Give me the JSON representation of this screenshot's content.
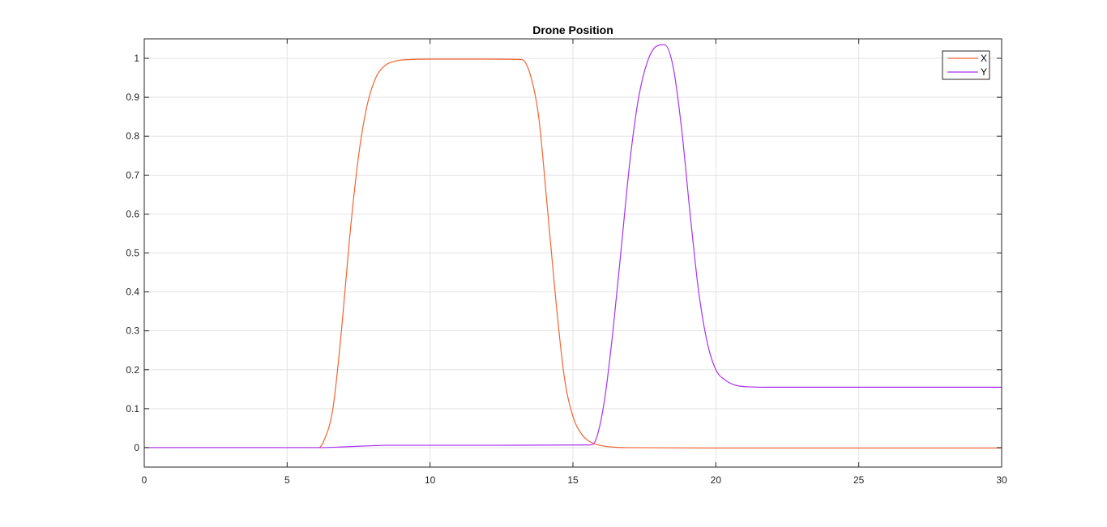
{
  "chart_data": {
    "type": "line",
    "title": "Drone Position",
    "xlabel": "",
    "ylabel": "",
    "xlim": [
      0,
      30
    ],
    "ylim": [
      -0.05,
      1.05
    ],
    "xticks": [
      0,
      5,
      10,
      15,
      20,
      25,
      30
    ],
    "yticks": [
      0,
      0.1,
      0.2,
      0.3,
      0.4,
      0.5,
      0.6,
      0.7,
      0.8,
      0.9,
      1
    ],
    "xtick_labels": [
      "0",
      "5",
      "10",
      "15",
      "20",
      "25",
      "30"
    ],
    "ytick_labels": [
      "0",
      "0.1",
      "0.2",
      "0.3",
      "0.4",
      "0.5",
      "0.6",
      "0.7",
      "0.8",
      "0.9",
      "1"
    ],
    "grid": true,
    "legend_position": "top-right",
    "series": [
      {
        "name": "X",
        "color": "#f26430",
        "x": [
          0,
          6.1,
          6.3,
          6.6,
          6.9,
          7.2,
          7.5,
          7.8,
          8.1,
          8.4,
          8.8,
          9.3,
          10,
          12,
          13.2,
          13.5,
          13.8,
          14.1,
          14.4,
          14.7,
          15.0,
          15.3,
          15.6,
          16.0,
          16.5,
          17,
          20,
          25,
          30
        ],
        "y": [
          0,
          0,
          0.02,
          0.1,
          0.3,
          0.55,
          0.75,
          0.88,
          0.95,
          0.98,
          0.993,
          0.997,
          0.998,
          0.998,
          0.997,
          0.96,
          0.85,
          0.62,
          0.38,
          0.18,
          0.08,
          0.035,
          0.015,
          0.005,
          0.001,
          0,
          -0.001,
          -0.001,
          -0.001
        ]
      },
      {
        "name": "Y",
        "color": "#a832f0",
        "x": [
          0,
          6.1,
          7.0,
          8.0,
          8.5,
          12,
          15.6,
          15.8,
          16.1,
          16.4,
          16.7,
          17.0,
          17.3,
          17.6,
          17.9,
          18.2,
          18.5,
          18.8,
          19.1,
          19.4,
          19.7,
          20.0,
          20.3,
          20.7,
          21.2,
          22,
          25,
          30
        ],
        "y": [
          0,
          0,
          0.002,
          0.005,
          0.006,
          0.006,
          0.007,
          0.02,
          0.12,
          0.3,
          0.52,
          0.74,
          0.9,
          0.99,
          1.03,
          1.035,
          0.98,
          0.82,
          0.6,
          0.4,
          0.27,
          0.2,
          0.175,
          0.16,
          0.156,
          0.155,
          0.155,
          0.155
        ]
      }
    ]
  }
}
